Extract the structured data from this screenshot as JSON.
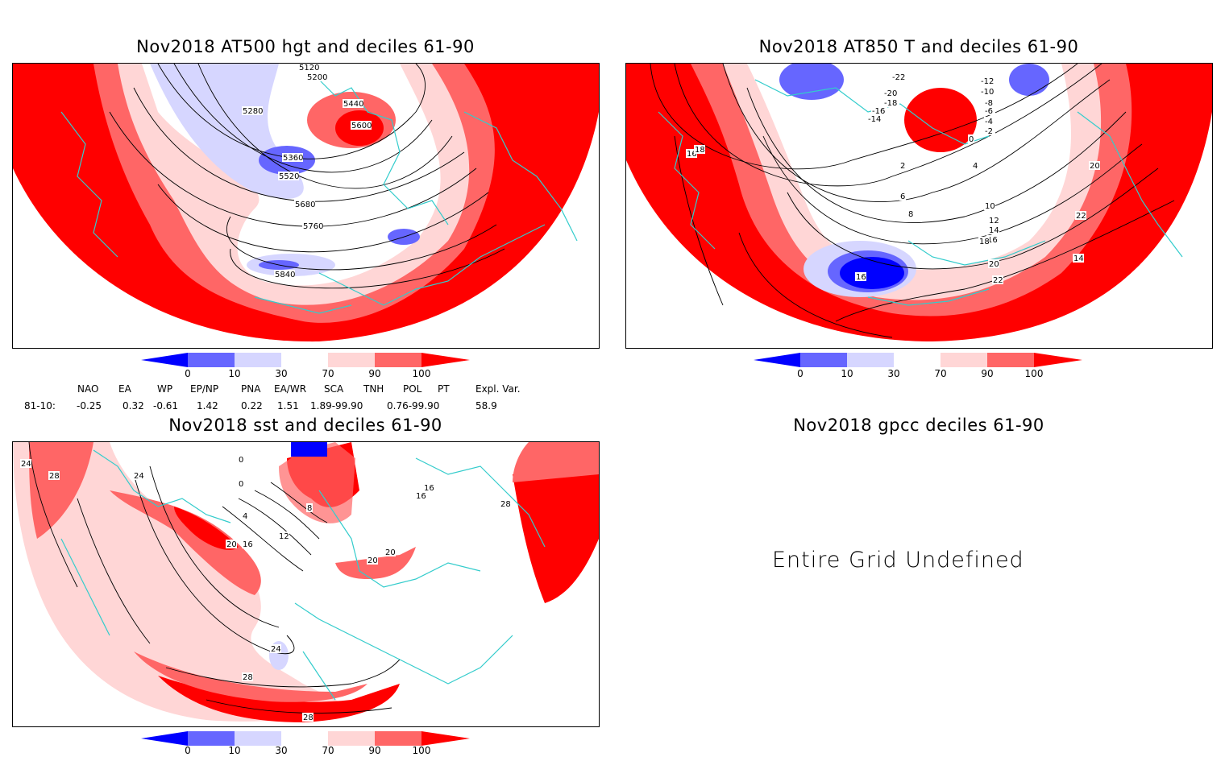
{
  "colors": {
    "d0_10": "#0000ff",
    "d10_30": "#6666ff",
    "d30": "#d6d6ff",
    "d70": "#ffd6d6",
    "d90": "#ff6666",
    "d100": "#ff0000",
    "coast": "#33cccc"
  },
  "panels": {
    "hgt": {
      "title": "Nov2018 AT500 hgt and deciles 61-90",
      "contour_labels": [
        "5120",
        "5200",
        "5280",
        "5440",
        "5600",
        "5360",
        "5520",
        "5680",
        "5760",
        "5840"
      ]
    },
    "t850": {
      "title": "Nov2018 AT850 T and deciles 61-90",
      "contour_labels": [
        "-22",
        "-12",
        "-10",
        "-8",
        "-6",
        "-4",
        "-2",
        "0",
        "2",
        "4",
        "6",
        "8",
        "10",
        "12",
        "14",
        "16",
        "18",
        "20",
        "22",
        "-20",
        "-18",
        "-16",
        "-14",
        "16",
        "18",
        "20",
        "22",
        "14",
        "16"
      ]
    },
    "sst": {
      "title": "Nov2018 sst and deciles 61-90",
      "contour_labels": [
        "24",
        "28",
        "24",
        "0",
        "0",
        "4",
        "8",
        "12",
        "16",
        "20",
        "20",
        "20",
        "16",
        "16",
        "28",
        "24",
        "28",
        "28"
      ]
    },
    "gpcc": {
      "title": "Nov2018 gpcc deciles 61-90",
      "message": "Entire Grid Undefined"
    }
  },
  "colorbar": {
    "ticks": [
      "0",
      "10",
      "30",
      "70",
      "90",
      "100"
    ]
  },
  "indices": {
    "headers": [
      "NAO",
      "EA",
      "WP",
      "EP/NP",
      "PNA",
      "EA/WR",
      "SCA",
      "TNH",
      "POL",
      "PT",
      "Expl. Var."
    ],
    "row_label": "81-10:",
    "values": [
      "-0.25",
      "0.32",
      "-0.61",
      "1.42",
      "0.22",
      "1.51",
      "1.89-99.90",
      "0.76-99.90",
      "58.9"
    ]
  }
}
